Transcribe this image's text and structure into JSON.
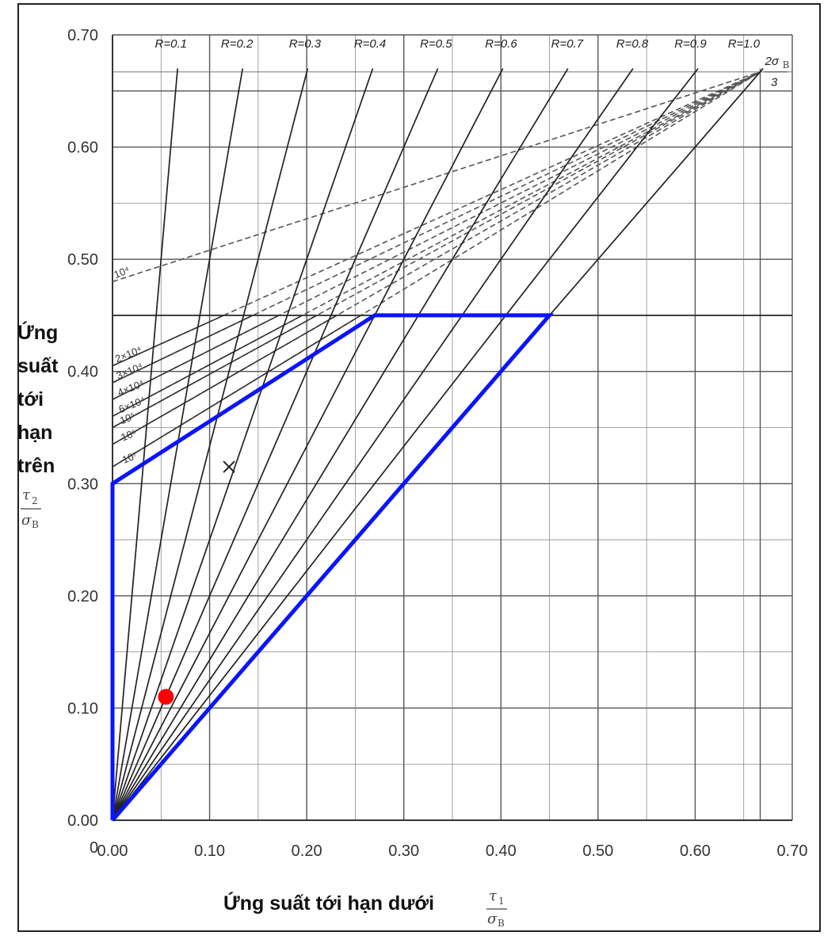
{
  "chart_data": {
    "type": "line",
    "title": "",
    "xlabel": "Ứng suất tới hạn dưới",
    "ylabel_lines": [
      "Ứng",
      "suất",
      "tới",
      "hạn",
      "trên"
    ],
    "x_symbol": "τ",
    "x_symbol_sub": "1",
    "y_symbol": "τ",
    "y_symbol_sub": "2",
    "denominator_symbol": "σ",
    "denominator_sub": "B",
    "origin_label": "0",
    "xlim": [
      0,
      0.7
    ],
    "ylim": [
      0,
      0.7
    ],
    "x_ticks": [
      "0.00",
      "0.10",
      "0.20",
      "0.30",
      "0.40",
      "0.50",
      "0.60",
      "0.70"
    ],
    "y_ticks": [
      "0.00",
      "0.10",
      "0.20",
      "0.30",
      "0.40",
      "0.50",
      "0.60",
      "0.70"
    ],
    "r_lines": [
      {
        "label": "R=0.1",
        "r": 0.1
      },
      {
        "label": "R=0.2",
        "r": 0.2
      },
      {
        "label": "R=0.3",
        "r": 0.3
      },
      {
        "label": "R=0.4",
        "r": 0.4
      },
      {
        "label": "R=0.5",
        "r": 0.5
      },
      {
        "label": "R=0.6",
        "r": 0.6
      },
      {
        "label": "R=0.7",
        "r": 0.7
      },
      {
        "label": "R=0.8",
        "r": 0.8
      },
      {
        "label": "R=0.9",
        "r": 0.9
      },
      {
        "label": "R=1.0",
        "r": 1.0
      }
    ],
    "apex_label": "2σB/3",
    "apex_label_num": "2σ",
    "apex_label_sub": "B",
    "apex_label_den": "3",
    "apex": [
      0.667,
      0.667
    ],
    "cycle_lines": [
      {
        "label": "10⁴",
        "y0": 0.48
      },
      {
        "label": "2×10⁴",
        "y0": 0.405
      },
      {
        "label": "3×10⁴",
        "y0": 0.39
      },
      {
        "label": "4×10⁴",
        "y0": 0.375
      },
      {
        "label": "6×10⁴",
        "y0": 0.36
      },
      {
        "label": "10⁵",
        "y0": 0.35
      },
      {
        "label": "10⁶",
        "y0": 0.335
      },
      {
        "label": "10⁷",
        "y0": 0.315
      }
    ],
    "cutoff_y": 0.45,
    "allowable_region": [
      [
        0,
        0
      ],
      [
        0,
        0.3
      ],
      [
        0.27,
        0.45
      ],
      [
        0.45,
        0.45
      ],
      [
        0,
        0
      ]
    ],
    "marker_x": [
      0.12,
      0.315
    ],
    "marker_point": [
      0.055,
      0.11
    ],
    "colors": {
      "region": "#0a14ff",
      "point": "#ff0000",
      "grid": "#555555",
      "r_line": "#222222",
      "cycle_line": "#555555"
    }
  }
}
